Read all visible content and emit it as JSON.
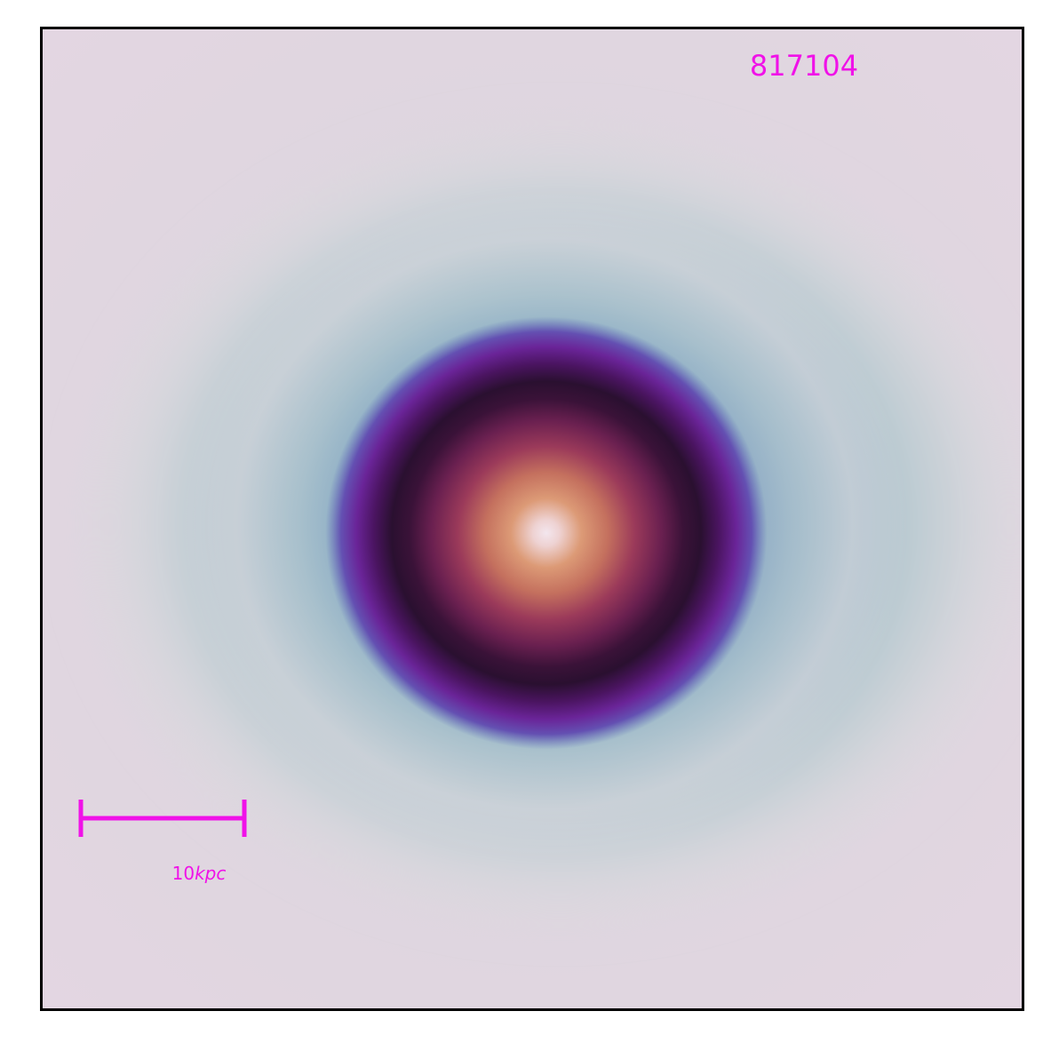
{
  "image": {
    "object_id": "817104",
    "scalebar": {
      "value": "10",
      "unit": "kpc"
    },
    "colors": {
      "annotation": "#f012e8",
      "background_outer": "#e0d8e0",
      "core": "#f2e4ee",
      "ring_dark": "#2a1030",
      "ring_purple": "#6a1e8c",
      "halo_blue": "#7aa0bc",
      "halo_teal": "#b8ccd2"
    },
    "colormap": "twilight-like"
  }
}
